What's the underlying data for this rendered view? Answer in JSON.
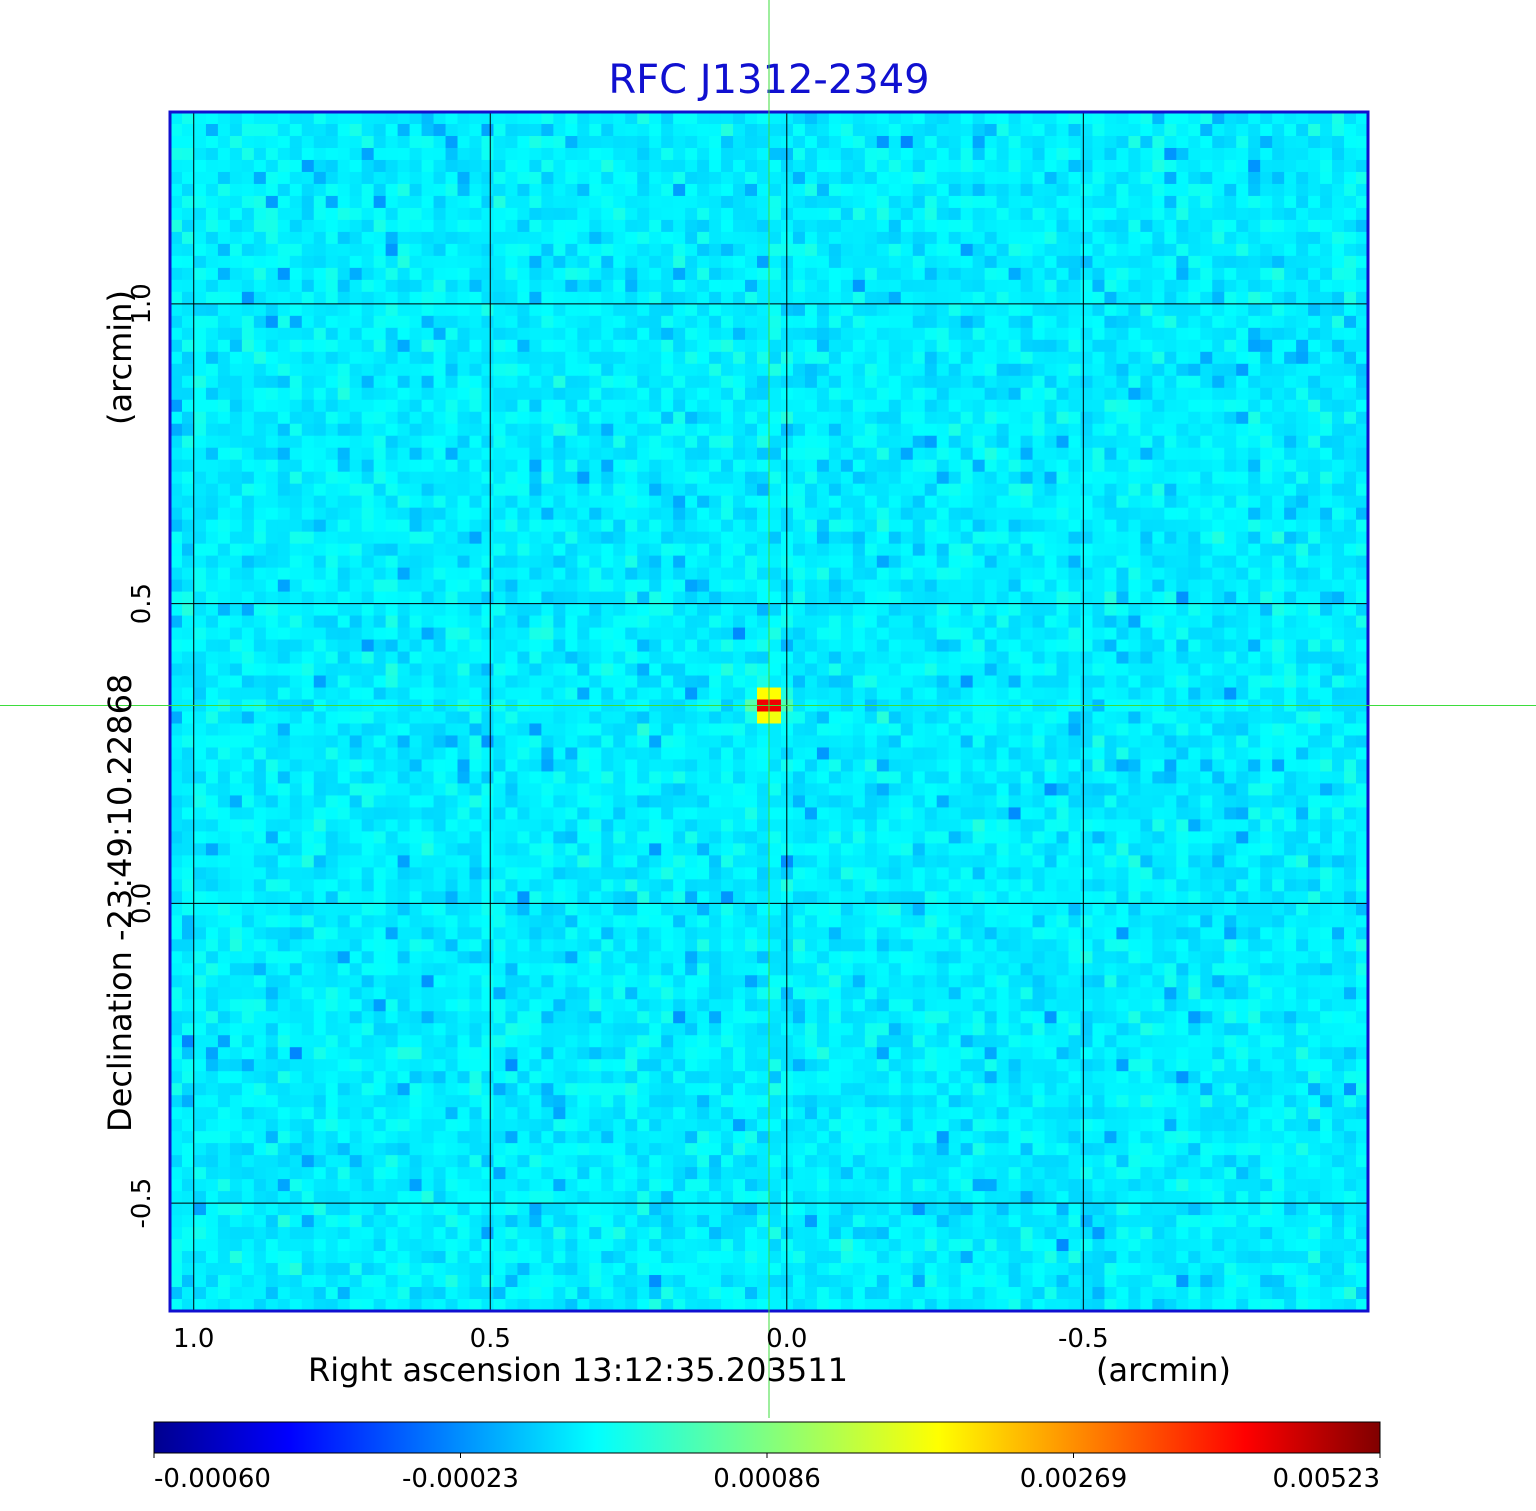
{
  "chart_data": {
    "type": "heatmap",
    "title": "RFC J1312-2349",
    "xlabel": "Right ascension  13:12:35.203511",
    "xunit": "(arcmin)",
    "ylabel": "Declination  -23:49:10.22868",
    "yunit": "(arcmin)",
    "x_ticks": [
      1.0,
      0.5,
      0.0,
      -0.5
    ],
    "x_tick_labels": [
      "1.0",
      "0.5",
      "0.0",
      "-0.5"
    ],
    "y_ticks": [
      1.0,
      0.5,
      0.0,
      -0.5
    ],
    "y_tick_labels": [
      "1.0",
      "0.5",
      "0.0",
      "-0.5"
    ],
    "xlim": [
      1.04,
      -0.98
    ],
    "ylim": [
      -0.68,
      1.32
    ],
    "grid": true,
    "crosshair": {
      "x": 0.03,
      "y": 0.33,
      "color": "#3ddc3d"
    },
    "source_peak": {
      "x": 0.03,
      "y": 0.33,
      "value": 0.00523
    },
    "background_level": -0.0001,
    "colorbar": {
      "colormap": "jet",
      "ticks": [
        -0.0006,
        -0.00023,
        0.00086,
        0.00269,
        0.00523
      ],
      "tick_labels": [
        "-0.00060",
        "-0.00023",
        "0.00086",
        "0.00269",
        "0.00523"
      ]
    },
    "colors": {
      "title": "#1010d0",
      "frame": "#1010d0",
      "grid": "#000000"
    }
  }
}
